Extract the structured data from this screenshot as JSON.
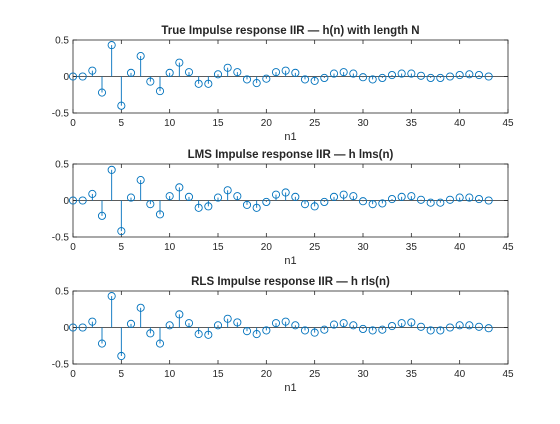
{
  "chart_data": [
    {
      "type": "stem",
      "title": "True Impulse response IIR   — h(n) with length N",
      "xlabel": "n1",
      "ylabel": "",
      "xlim": [
        0,
        45
      ],
      "ylim": [
        -0.5,
        0.5
      ],
      "xticks": [
        "0",
        "5",
        "10",
        "15",
        "20",
        "25",
        "30",
        "35",
        "40",
        "45"
      ],
      "yticks": [
        "0.5",
        "0",
        "-0.5"
      ],
      "grid": false,
      "color": "#0072BD",
      "x": [
        0,
        1,
        2,
        3,
        4,
        5,
        6,
        7,
        8,
        9,
        10,
        11,
        12,
        13,
        14,
        15,
        16,
        17,
        18,
        19,
        20,
        21,
        22,
        23,
        24,
        25,
        26,
        27,
        28,
        29,
        30,
        31,
        32,
        33,
        34,
        35,
        36,
        37,
        38,
        39,
        40,
        41,
        42,
        43
      ],
      "values": [
        0.0,
        0.0,
        0.08,
        -0.22,
        0.43,
        -0.4,
        0.05,
        0.28,
        -0.07,
        -0.2,
        0.05,
        0.19,
        0.06,
        -0.1,
        -0.1,
        0.03,
        0.12,
        0.06,
        -0.04,
        -0.09,
        -0.03,
        0.06,
        0.08,
        0.05,
        -0.04,
        -0.06,
        -0.02,
        0.04,
        0.06,
        0.04,
        -0.01,
        -0.04,
        -0.02,
        0.02,
        0.04,
        0.04,
        0.01,
        -0.02,
        -0.02,
        0.0,
        0.02,
        0.03,
        0.02,
        0.0
      ]
    },
    {
      "type": "stem",
      "title": "LMS Impulse response IIR   — h lms(n)",
      "xlabel": "n1",
      "ylabel": "",
      "xlim": [
        0,
        45
      ],
      "ylim": [
        -0.5,
        0.5
      ],
      "xticks": [
        "0",
        "5",
        "10",
        "15",
        "20",
        "25",
        "30",
        "35",
        "40",
        "45"
      ],
      "yticks": [
        "0.5",
        "0",
        "-0.5"
      ],
      "grid": false,
      "color": "#0072BD",
      "x": [
        0,
        1,
        2,
        3,
        4,
        5,
        6,
        7,
        8,
        9,
        10,
        11,
        12,
        13,
        14,
        15,
        16,
        17,
        18,
        19,
        20,
        21,
        22,
        23,
        24,
        25,
        26,
        27,
        28,
        29,
        30,
        31,
        32,
        33,
        34,
        35,
        36,
        37,
        38,
        39,
        40,
        41,
        42,
        43
      ],
      "values": [
        0.0,
        0.0,
        0.09,
        -0.21,
        0.42,
        -0.42,
        0.04,
        0.28,
        -0.05,
        -0.19,
        0.06,
        0.18,
        0.05,
        -0.1,
        -0.08,
        0.04,
        0.14,
        0.06,
        -0.06,
        -0.1,
        -0.02,
        0.08,
        0.11,
        0.05,
        -0.05,
        -0.08,
        -0.02,
        0.05,
        0.08,
        0.06,
        -0.01,
        -0.05,
        -0.04,
        0.02,
        0.05,
        0.06,
        0.01,
        -0.03,
        -0.03,
        0.01,
        0.04,
        0.04,
        0.02,
        0.0
      ]
    },
    {
      "type": "stem",
      "title": "RLS Impulse response IIR   — h rls(n)",
      "xlabel": "n1",
      "ylabel": "",
      "xlim": [
        0,
        45
      ],
      "ylim": [
        -0.5,
        0.5
      ],
      "xticks": [
        "0",
        "5",
        "10",
        "15",
        "20",
        "25",
        "30",
        "35",
        "40",
        "45"
      ],
      "yticks": [
        "0.5",
        "0",
        "-0.5"
      ],
      "grid": false,
      "color": "#0072BD",
      "x": [
        0,
        1,
        2,
        3,
        4,
        5,
        6,
        7,
        8,
        9,
        10,
        11,
        12,
        13,
        14,
        15,
        16,
        17,
        18,
        19,
        20,
        21,
        22,
        23,
        24,
        25,
        26,
        27,
        28,
        29,
        30,
        31,
        32,
        33,
        34,
        35,
        36,
        37,
        38,
        39,
        40,
        41,
        42,
        43
      ],
      "values": [
        0.0,
        0.0,
        0.08,
        -0.22,
        0.43,
        -0.39,
        0.05,
        0.27,
        -0.08,
        -0.22,
        0.03,
        0.18,
        0.06,
        -0.09,
        -0.1,
        0.03,
        0.12,
        0.07,
        -0.05,
        -0.09,
        -0.04,
        0.06,
        0.08,
        0.03,
        -0.04,
        -0.07,
        -0.03,
        0.04,
        0.06,
        0.03,
        -0.02,
        -0.04,
        -0.03,
        0.02,
        0.06,
        0.07,
        0.01,
        -0.04,
        -0.04,
        0.0,
        0.03,
        0.03,
        0.01,
        -0.01
      ]
    }
  ]
}
